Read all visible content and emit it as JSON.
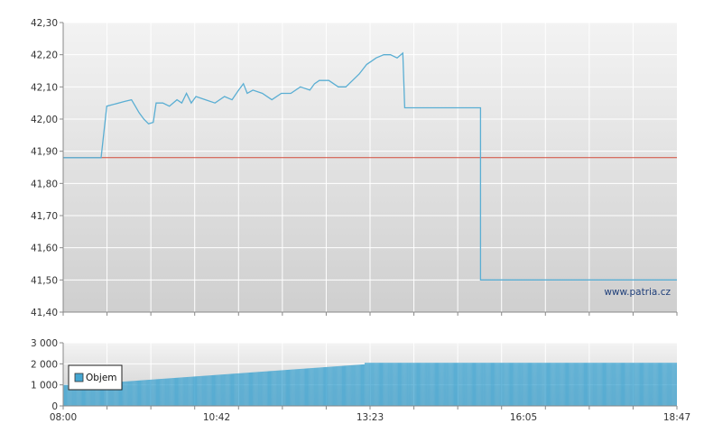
{
  "watermark": "www.patria.cz",
  "x_tick_labels": [
    "08:00",
    "10:42",
    "13:23",
    "16:05",
    "18:47"
  ],
  "colors": {
    "price_line": "#5aaed3",
    "reference_line": "#d24a3a",
    "volume_bars": "#45a6d1",
    "plot_bg_top": "#f3f3f3",
    "plot_bg_bottom": "#cfcfcf",
    "grid": "#ffffff"
  },
  "chart_data": [
    {
      "type": "line",
      "x_unit": "minutes",
      "x_range": [
        "08:00",
        "18:47"
      ],
      "ylim": [
        41.4,
        42.3
      ],
      "y_ticks": [
        "41,40",
        "41,50",
        "41,60",
        "41,70",
        "41,80",
        "41,90",
        "42,00",
        "42,10",
        "42,20",
        "42,30"
      ],
      "grid": true,
      "reference_line": {
        "value": 41.88
      },
      "series": [
        {
          "points": [
            [
              "08:00",
              41.88
            ],
            [
              "08:40",
              41.88
            ],
            [
              "08:46",
              42.04
            ],
            [
              "09:05",
              42.055
            ],
            [
              "09:12",
              42.06
            ],
            [
              "09:16",
              42.04
            ],
            [
              "09:20",
              42.02
            ],
            [
              "09:25",
              42.0
            ],
            [
              "09:30",
              41.985
            ],
            [
              "09:35",
              41.99
            ],
            [
              "09:38",
              42.05
            ],
            [
              "09:45",
              42.05
            ],
            [
              "09:52",
              42.04
            ],
            [
              "10:00",
              42.06
            ],
            [
              "10:05",
              42.05
            ],
            [
              "10:10",
              42.08
            ],
            [
              "10:15",
              42.05
            ],
            [
              "10:20",
              42.07
            ],
            [
              "10:30",
              42.06
            ],
            [
              "10:40",
              42.05
            ],
            [
              "10:50",
              42.07
            ],
            [
              "10:58",
              42.06
            ],
            [
              "11:05",
              42.09
            ],
            [
              "11:10",
              42.11
            ],
            [
              "11:14",
              42.08
            ],
            [
              "11:20",
              42.09
            ],
            [
              "11:30",
              42.08
            ],
            [
              "11:40",
              42.06
            ],
            [
              "11:50",
              42.08
            ],
            [
              "12:00",
              42.08
            ],
            [
              "12:10",
              42.1
            ],
            [
              "12:20",
              42.09
            ],
            [
              "12:25",
              42.11
            ],
            [
              "12:30",
              42.12
            ],
            [
              "12:40",
              42.12
            ],
            [
              "12:50",
              42.1
            ],
            [
              "12:58",
              42.1
            ],
            [
              "13:05",
              42.12
            ],
            [
              "13:12",
              42.14
            ],
            [
              "13:20",
              42.17
            ],
            [
              "13:25",
              42.18
            ],
            [
              "13:30",
              42.19
            ],
            [
              "13:38",
              42.2
            ],
            [
              "13:45",
              42.2
            ],
            [
              "13:52",
              42.19
            ],
            [
              "13:58",
              42.205
            ],
            [
              "14:00",
              42.035
            ],
            [
              "15:20",
              42.035
            ],
            [
              "15:20",
              41.5
            ],
            [
              "18:47",
              41.5
            ]
          ]
        }
      ]
    },
    {
      "type": "bar",
      "x_unit": "minutes",
      "x_range": [
        "08:00",
        "18:47"
      ],
      "ylim": [
        0,
        3000
      ],
      "y_ticks": [
        "0",
        "1 000",
        "2 000",
        "3 000"
      ],
      "grid": true,
      "legend": {
        "position": "left",
        "entries": [
          "Objem"
        ]
      },
      "series": [
        {
          "name": "Objem",
          "segments": [
            {
              "from": "08:00",
              "to": "08:46",
              "value": 1000
            },
            {
              "from": "08:46",
              "to": "13:18",
              "value_start": 1100,
              "value_end": 1980
            },
            {
              "from": "13:18",
              "to": "18:47",
              "value": 2050
            }
          ]
        }
      ]
    }
  ]
}
